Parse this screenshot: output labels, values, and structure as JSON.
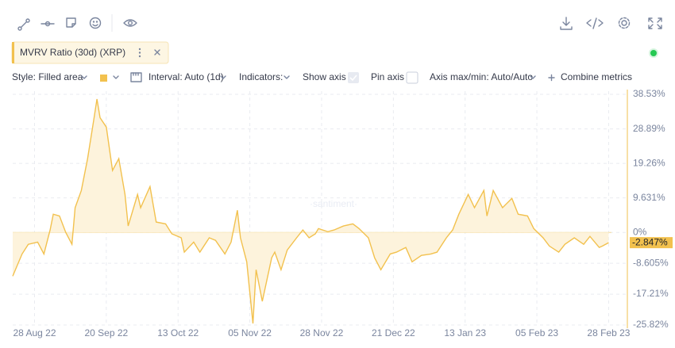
{
  "ui": {
    "metric": "MVRV Ratio (30d) (XRP)",
    "style": "Style: Filled area",
    "interval": "Interval: Auto (1d)",
    "indicators": "Indicators:",
    "show_axis": "Show axis",
    "pin_axis": "Pin axis",
    "axis_minmax": "Axis max/min: Auto/Auto",
    "combine": "Combine metrics",
    "watermark": "·santiment·"
  },
  "chart_data": {
    "type": "area",
    "color": "#f2c14e",
    "fill": "#fdf3dc",
    "grid": true,
    "series": [
      {
        "name": "MVRV Ratio (30d) (XRP)",
        "color": "#f2c14e",
        "x": [
          "2022-08-21",
          "2022-08-24",
          "2022-08-26",
          "2022-08-29",
          "2022-08-31",
          "2022-09-02",
          "2022-09-03",
          "2022-09-05",
          "2022-09-07",
          "2022-09-09",
          "2022-09-10",
          "2022-09-12",
          "2022-09-14",
          "2022-09-16",
          "2022-09-17",
          "2022-09-18",
          "2022-09-20",
          "2022-09-22",
          "2022-09-24",
          "2022-09-26",
          "2022-09-27",
          "2022-09-30",
          "2022-10-01",
          "2022-10-04",
          "2022-10-06",
          "2022-10-09",
          "2022-10-11",
          "2022-10-14",
          "2022-10-15",
          "2022-10-18",
          "2022-10-20",
          "2022-10-23",
          "2022-10-25",
          "2022-10-28",
          "2022-10-30",
          "2022-11-01",
          "2022-11-02",
          "2022-11-04",
          "2022-11-06",
          "2022-11-07",
          "2022-11-09",
          "2022-11-12",
          "2022-11-13",
          "2022-11-15",
          "2022-11-17",
          "2022-11-20",
          "2022-11-22",
          "2022-11-24",
          "2022-11-26",
          "2022-11-27",
          "2022-11-30",
          "2022-12-02",
          "2022-12-05",
          "2022-12-08",
          "2022-12-10",
          "2022-12-13",
          "2022-12-15",
          "2022-12-17",
          "2022-12-20",
          "2022-12-22",
          "2022-12-25",
          "2022-12-27",
          "2022-12-30",
          "2023-01-02",
          "2023-01-04",
          "2023-01-07",
          "2023-01-09",
          "2023-01-11",
          "2023-01-14",
          "2023-01-16",
          "2023-01-19",
          "2023-01-20",
          "2023-01-22",
          "2023-01-25",
          "2023-01-28",
          "2023-01-30",
          "2023-02-02",
          "2023-02-04",
          "2023-02-07",
          "2023-02-09",
          "2023-02-12",
          "2023-02-14",
          "2023-02-17",
          "2023-02-20",
          "2023-02-22",
          "2023-02-25",
          "2023-02-26",
          "2023-02-28"
        ],
        "values": [
          -12.2,
          -6,
          -3.3,
          -2.7,
          -6,
          0.7,
          5.1,
          4.6,
          0,
          -3.3,
          6.9,
          11.7,
          20.6,
          31.6,
          37.2,
          32,
          29.4,
          17.3,
          20.6,
          10.6,
          1.8,
          10.6,
          6.9,
          12.8,
          2.9,
          2.4,
          -0.4,
          -1.5,
          -5.5,
          -2.7,
          -5.5,
          -1.5,
          -2.2,
          -6,
          -2.7,
          6.2,
          -1.5,
          -8.2,
          -25.4,
          -10.4,
          -19.2,
          -7.1,
          -5.5,
          -10.4,
          -4.9,
          -1.5,
          0.7,
          -1.5,
          -0.4,
          1.1,
          0.2,
          0.7,
          1.8,
          2.4,
          1.1,
          -1.5,
          -7.1,
          -10.4,
          -6,
          -5.5,
          -4.2,
          -8.2,
          -6.4,
          -6,
          -5.5,
          -1.5,
          0.7,
          5.1,
          10.6,
          6.9,
          11.7,
          4.6,
          11.7,
          6.9,
          9.5,
          5.1,
          4.6,
          1.1,
          -1.5,
          -3.8,
          -5.5,
          -3.3,
          -1.5,
          -3.3,
          -1.1,
          -4.2,
          -3.8,
          -2.847
        ]
      }
    ],
    "xlim": [
      "2022-08-21",
      "2023-03-06"
    ],
    "xticks": [
      {
        "value": "2022-08-28",
        "label": "28 Aug 22"
      },
      {
        "value": "2022-09-20",
        "label": "20 Sep 22"
      },
      {
        "value": "2022-10-13",
        "label": "13 Oct 22"
      },
      {
        "value": "2022-11-05",
        "label": "05 Nov 22"
      },
      {
        "value": "2022-11-28",
        "label": "28 Nov 22"
      },
      {
        "value": "2022-12-21",
        "label": "21 Dec 22"
      },
      {
        "value": "2023-01-13",
        "label": "13 Jan 23"
      },
      {
        "value": "2023-02-05",
        "label": "05 Feb 23"
      },
      {
        "value": "2023-02-28",
        "label": "28 Feb 23"
      }
    ],
    "ylim": [
      -25.82,
      38.53
    ],
    "yticks": [
      {
        "value": 38.53,
        "label": "38.53%"
      },
      {
        "value": 28.89,
        "label": "28.89%"
      },
      {
        "value": 19.26,
        "label": "19.26%"
      },
      {
        "value": 9.631,
        "label": "9.631%"
      },
      {
        "value": 0,
        "label": "0%"
      },
      {
        "value": -8.605,
        "label": "-8.605%"
      },
      {
        "value": -17.21,
        "label": "-17.21%"
      },
      {
        "value": -25.82,
        "label": "-25.82%"
      }
    ],
    "annotations": [
      {
        "value": -2.847,
        "label": "-2.847%"
      }
    ]
  }
}
